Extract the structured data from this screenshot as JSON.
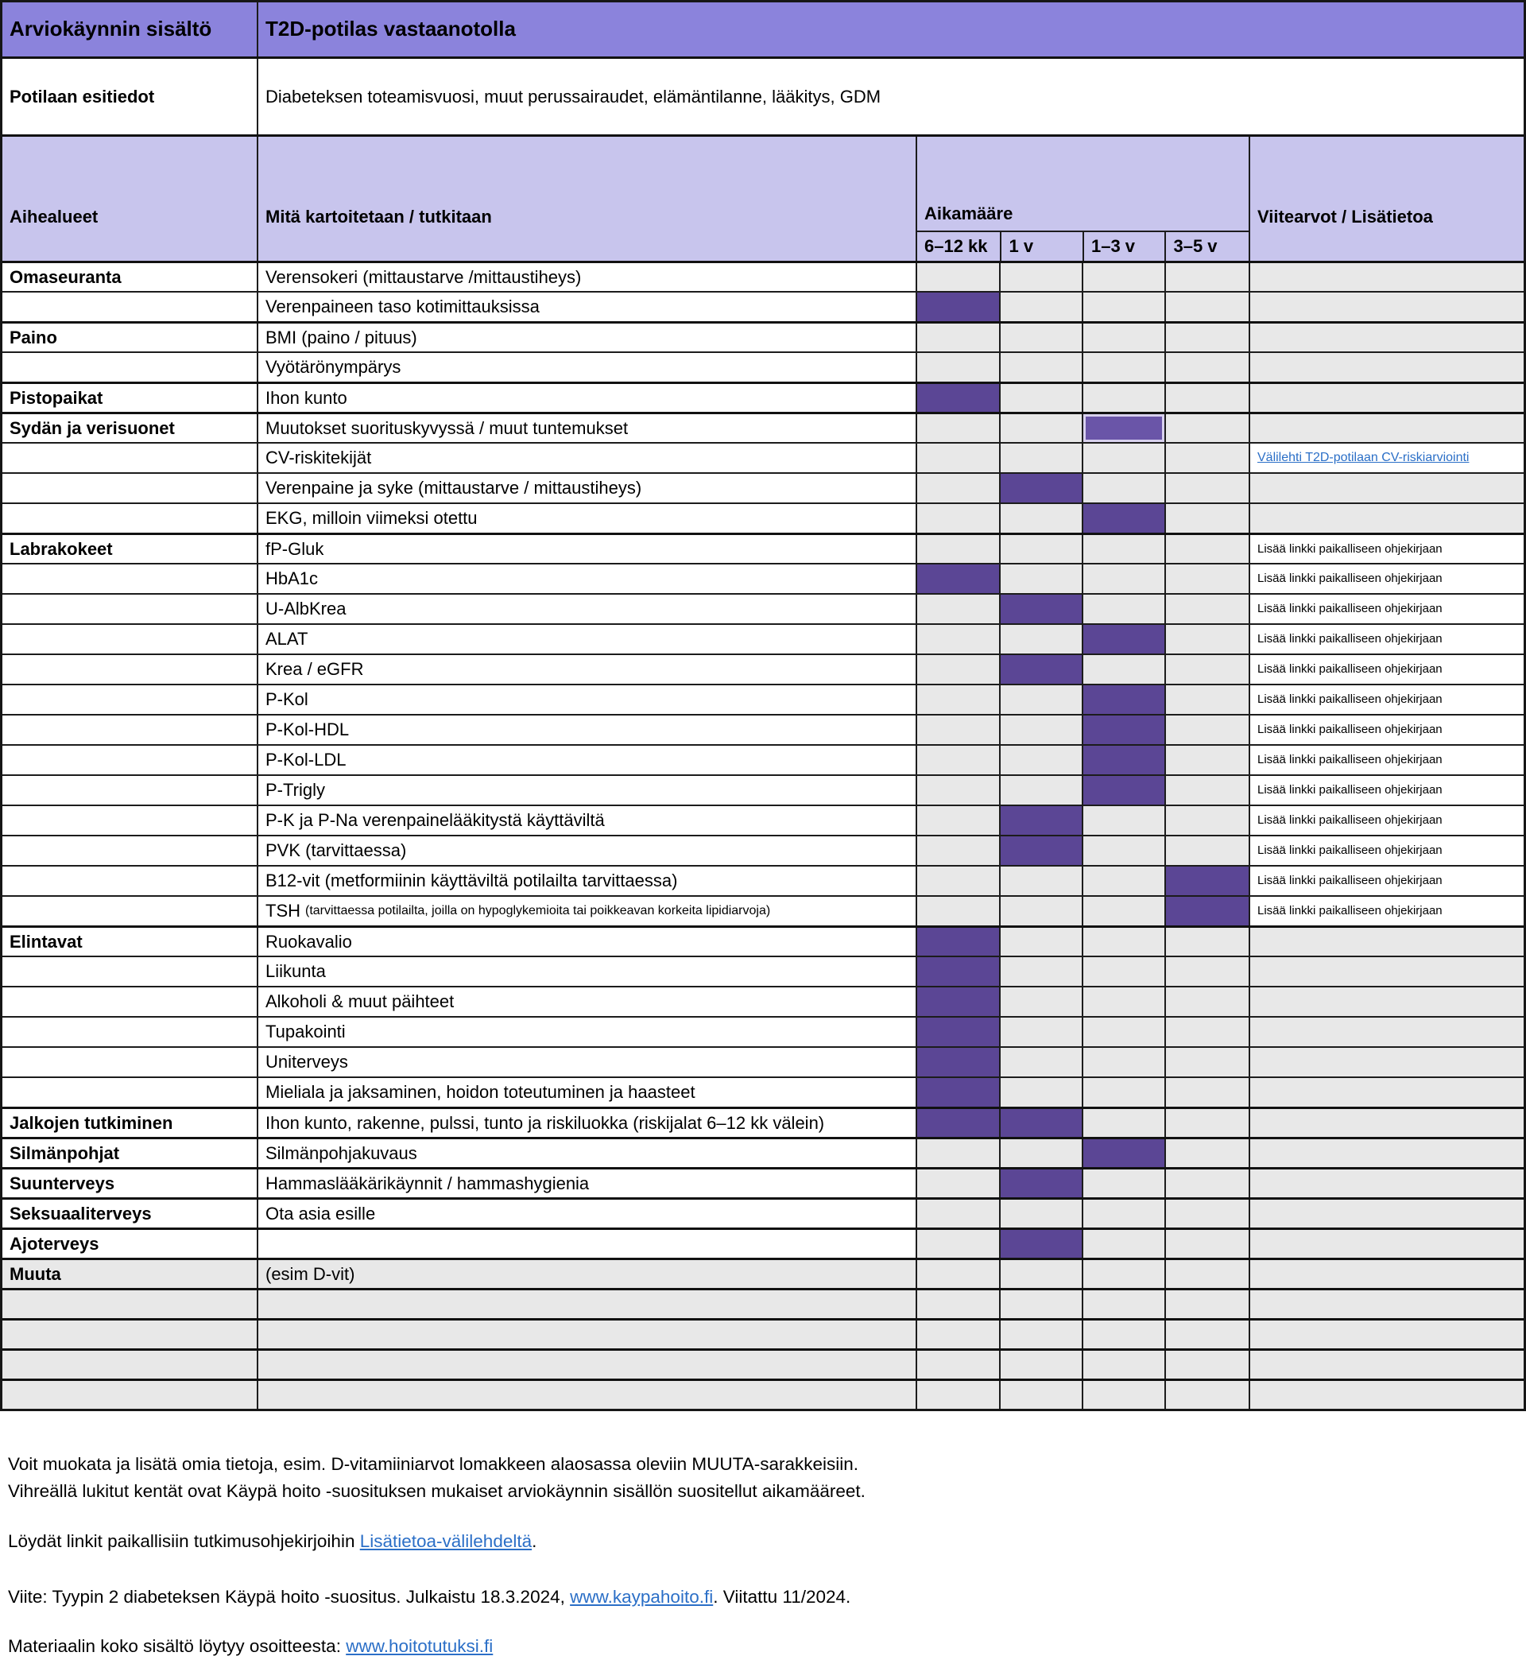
{
  "colors": {
    "title_bg": "#8b83dc",
    "band_bg": "#c8c5ed",
    "fill_purple": "#5b4695",
    "cell_gray": "#e8e8e8",
    "link_blue": "#2b6fc7"
  },
  "header": {
    "col1": "Arviokäynnin sisältö",
    "col2": "T2D-potilas vastaanotolla"
  },
  "intro": {
    "label": "Potilaan esitiedot",
    "value": "Diabeteksen toteamisvuosi, muut perussairaudet, elämäntilanne, lääkitys, GDM"
  },
  "columns": {
    "topic": "Aihealueet",
    "what": "Mitä kartoitetaan / tutkitaan",
    "timeframe": "Aikamääre",
    "reference": "Viitearvot / Lisätietoa",
    "intervals": [
      "6–12 kk",
      "1 v",
      "1–3 v",
      "3–5 v"
    ]
  },
  "link_labels": {
    "cv": "Välilehti T2D-potilaan CV-riskiarviointi",
    "local": "Lisää linkki paikalliseen ohjekirjaan"
  },
  "rows": [
    {
      "topic": "Omaseuranta",
      "what": "Verensokeri (mittaustarve /mittaustiheys)",
      "marks": [],
      "ref": ""
    },
    {
      "topic": "",
      "what": "Verenpaineen taso kotimittauksissa",
      "marks": [
        0
      ],
      "ref": ""
    },
    {
      "topic": "Paino",
      "what": "BMI (paino / pituus)",
      "marks": [],
      "ref": ""
    },
    {
      "topic": "",
      "what": "Vyötärönympärys",
      "marks": [],
      "ref": ""
    },
    {
      "topic": "Pistopaikat",
      "what": "Ihon kunto",
      "marks": [
        0
      ],
      "ref": ""
    },
    {
      "topic": "Sydän ja verisuonet",
      "what": "Muutokset suorituskyvyssä / muut tuntemukset",
      "marks": [
        2
      ],
      "sel": true,
      "ref": ""
    },
    {
      "topic": "",
      "what": "CV-riskitekijät",
      "marks": [],
      "ref": "cv_link"
    },
    {
      "topic": "",
      "what": "Verenpaine ja syke (mittaustarve / mittaustiheys)",
      "marks": [
        1
      ],
      "ref": ""
    },
    {
      "topic": "",
      "what": "EKG, milloin viimeksi otettu",
      "marks": [
        2
      ],
      "ref": ""
    },
    {
      "topic": "Labrakokeet",
      "what": "fP-Gluk",
      "marks": [],
      "ref": "local_link"
    },
    {
      "topic": "",
      "what": "HbA1c",
      "marks": [
        0
      ],
      "ref": "local_link"
    },
    {
      "topic": "",
      "what": "U-AlbKrea",
      "marks": [
        1
      ],
      "ref": "local_link"
    },
    {
      "topic": "",
      "what": "ALAT",
      "marks": [
        2
      ],
      "ref": "local_link"
    },
    {
      "topic": "",
      "what": "Krea / eGFR",
      "marks": [
        1
      ],
      "ref": "local_link"
    },
    {
      "topic": "",
      "what": "P-Kol",
      "marks": [
        2
      ],
      "ref": "local_link"
    },
    {
      "topic": "",
      "what": "P-Kol-HDL",
      "marks": [
        2
      ],
      "ref": "local_link"
    },
    {
      "topic": "",
      "what": "P-Kol-LDL",
      "marks": [
        2
      ],
      "ref": "local_link"
    },
    {
      "topic": "",
      "what": "P-Trigly",
      "marks": [
        2
      ],
      "ref": "local_link"
    },
    {
      "topic": "",
      "what": "P-K ja P-Na verenpainelääkitystä käyttäviltä",
      "marks": [
        1
      ],
      "ref": "local_link"
    },
    {
      "topic": "",
      "what": "PVK (tarvittaessa)",
      "marks": [
        1
      ],
      "ref": "local_link"
    },
    {
      "topic": "",
      "what": "B12-vit (metformiinin käyttäviltä potilailta tarvittaessa)",
      "marks": [
        3
      ],
      "ref": "local_link"
    },
    {
      "topic": "",
      "what": "TSH",
      "what_small": "(tarvittaessa potilailta, joilla on hypoglykemioita tai poikkeavan korkeita lipidiarvoja)",
      "marks": [
        3
      ],
      "ref": "local_link"
    },
    {
      "topic": "Elintavat",
      "what": "Ruokavalio",
      "marks": [
        0
      ],
      "ref": ""
    },
    {
      "topic": "",
      "what": "Liikunta",
      "marks": [
        0
      ],
      "ref": ""
    },
    {
      "topic": "",
      "what": "Alkoholi & muut päihteet",
      "marks": [
        0
      ],
      "ref": ""
    },
    {
      "topic": "",
      "what": "Tupakointi",
      "marks": [
        0
      ],
      "ref": ""
    },
    {
      "topic": "",
      "what": "Uniterveys",
      "marks": [
        0
      ],
      "ref": ""
    },
    {
      "topic": "",
      "what": "Mieliala ja jaksaminen, hoidon toteutuminen ja haasteet",
      "marks": [
        0
      ],
      "ref": ""
    },
    {
      "topic": "Jalkojen tutkiminen",
      "what": "Ihon kunto, rakenne, pulssi, tunto ja riskiluokka (riskijalat 6–12 kk välein)",
      "marks": [
        0,
        1
      ],
      "ref": ""
    },
    {
      "topic": "Silmänpohjat",
      "what": "Silmänpohjakuvaus",
      "marks": [
        2
      ],
      "ref": ""
    },
    {
      "topic": "Suunterveys",
      "what": "Hammaslääkärikäynnit / hammashygienia",
      "marks": [
        1
      ],
      "ref": ""
    },
    {
      "topic": "Seksuaaliterveys",
      "what": "Ota asia esille",
      "marks": [],
      "ref": ""
    },
    {
      "topic": "Ajoterveys",
      "what": "",
      "marks": [
        1
      ],
      "ref": ""
    },
    {
      "topic": "Muuta",
      "what": "(esim D-vit)",
      "marks": [],
      "ref": "",
      "muted": true
    },
    {
      "topic": "",
      "what": "",
      "marks": [],
      "ref": "",
      "muted": true,
      "thick": true
    },
    {
      "topic": "",
      "what": "",
      "marks": [],
      "ref": "",
      "muted": true,
      "thick": true
    },
    {
      "topic": "",
      "what": "",
      "marks": [],
      "ref": "",
      "muted": true,
      "thick": true
    },
    {
      "topic": "",
      "what": "",
      "marks": [],
      "ref": "",
      "muted": true,
      "thick": true
    }
  ],
  "footer": {
    "line1": "Voit muokata ja lisätä omia tietoja, esim. D-vitamiiniarvot lomakkeen alaosassa oleviin MUUTA-sarakkeisiin.",
    "line2": "Vihreällä lukitut kentät ovat Käypä hoito -suosituksen mukaiset arviokäynnin sisällön suositellut aikamääreet.",
    "line3_prefix": "Löydät linkit paikallisiin tutkimusohjekirjoihin ",
    "line3_link": "Lisätietoa-välilehdeltä",
    "line3_suffix": ".",
    "line4_prefix": "Viite: Tyypin 2 diabeteksen Käypä hoito -suositus. Julkaistu 18.3.2024, ",
    "line4_link": "www.kaypahoito.fi",
    "line4_suffix": ". Viitattu 11/2024.",
    "line5_prefix": "Materiaalin koko sisältö löytyy osoitteesta: ",
    "line5_link": "www.hoitotutuksi.fi"
  }
}
